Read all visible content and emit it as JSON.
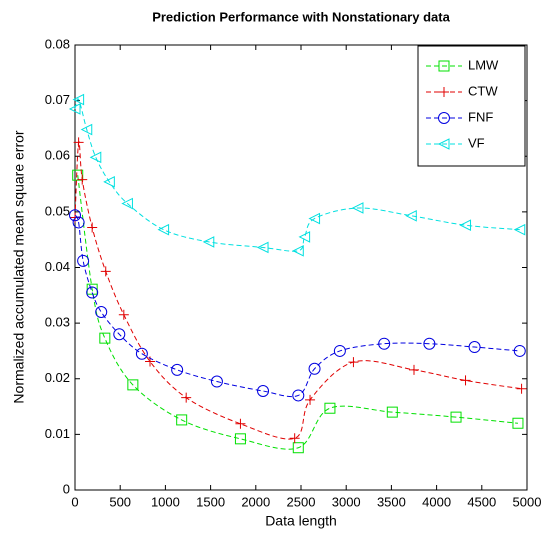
{
  "chart_data": {
    "type": "line",
    "title": "Prediction Performance with Nonstationary data",
    "x_label": "Data length",
    "y_label": "Normalized accumulated mean square error",
    "xlim": [
      0,
      5000
    ],
    "xticks": [
      0,
      500,
      1000,
      1500,
      2000,
      2500,
      3000,
      3500,
      4000,
      4500,
      5000
    ],
    "ylim": [
      0,
      0.08
    ],
    "yticks": [
      0,
      0.01,
      0.02,
      0.03,
      0.04,
      0.05,
      0.06,
      0.07,
      0.08
    ],
    "grid": false,
    "legend": "upper right",
    "series": [
      {
        "name": "LMW",
        "color": "#00e000",
        "marker": "square",
        "x": [
          30,
          190,
          330,
          640,
          1180,
          1830,
          2470,
          2820,
          3510,
          4215,
          4900
        ],
        "values": [
          0.0566,
          0.0361,
          0.0273,
          0.0189,
          0.0126,
          0.0092,
          0.0076,
          0.0147,
          0.014,
          0.0131,
          0.012
        ]
      },
      {
        "name": "CTW",
        "color": "#e00000",
        "marker": "plus",
        "x": [
          0,
          40,
          80,
          190,
          340,
          540,
          830,
          1230,
          1830,
          2430,
          2600,
          3080,
          3750,
          4320,
          4940
        ],
        "values": [
          0.049,
          0.0625,
          0.0558,
          0.0472,
          0.0393,
          0.0315,
          0.0231,
          0.0166,
          0.0119,
          0.0093,
          0.0162,
          0.023,
          0.0216,
          0.0197,
          0.0182
        ]
      },
      {
        "name": "FNF",
        "color": "#0000e0",
        "marker": "circle",
        "x": [
          0,
          40,
          90,
          190,
          290,
          490,
          740,
          1130,
          1570,
          2080,
          2470,
          2650,
          2930,
          3420,
          3920,
          4420,
          4920
        ],
        "values": [
          0.0494,
          0.0481,
          0.0412,
          0.0355,
          0.032,
          0.028,
          0.0245,
          0.0216,
          0.0195,
          0.0178,
          0.017,
          0.0218,
          0.025,
          0.0263,
          0.0263,
          0.0257,
          0.025
        ]
      },
      {
        "name": "VF",
        "color": "#00e0e0",
        "marker": "triangle-left",
        "x": [
          0,
          40,
          130,
          230,
          380,
          580,
          980,
          1480,
          2080,
          2470,
          2540,
          2650,
          3130,
          3720,
          4320,
          4920
        ],
        "values": [
          0.0685,
          0.0702,
          0.0648,
          0.0598,
          0.0554,
          0.0515,
          0.0468,
          0.0446,
          0.0436,
          0.043,
          0.0455,
          0.0488,
          0.0507,
          0.0493,
          0.0476,
          0.0468
        ]
      }
    ]
  }
}
